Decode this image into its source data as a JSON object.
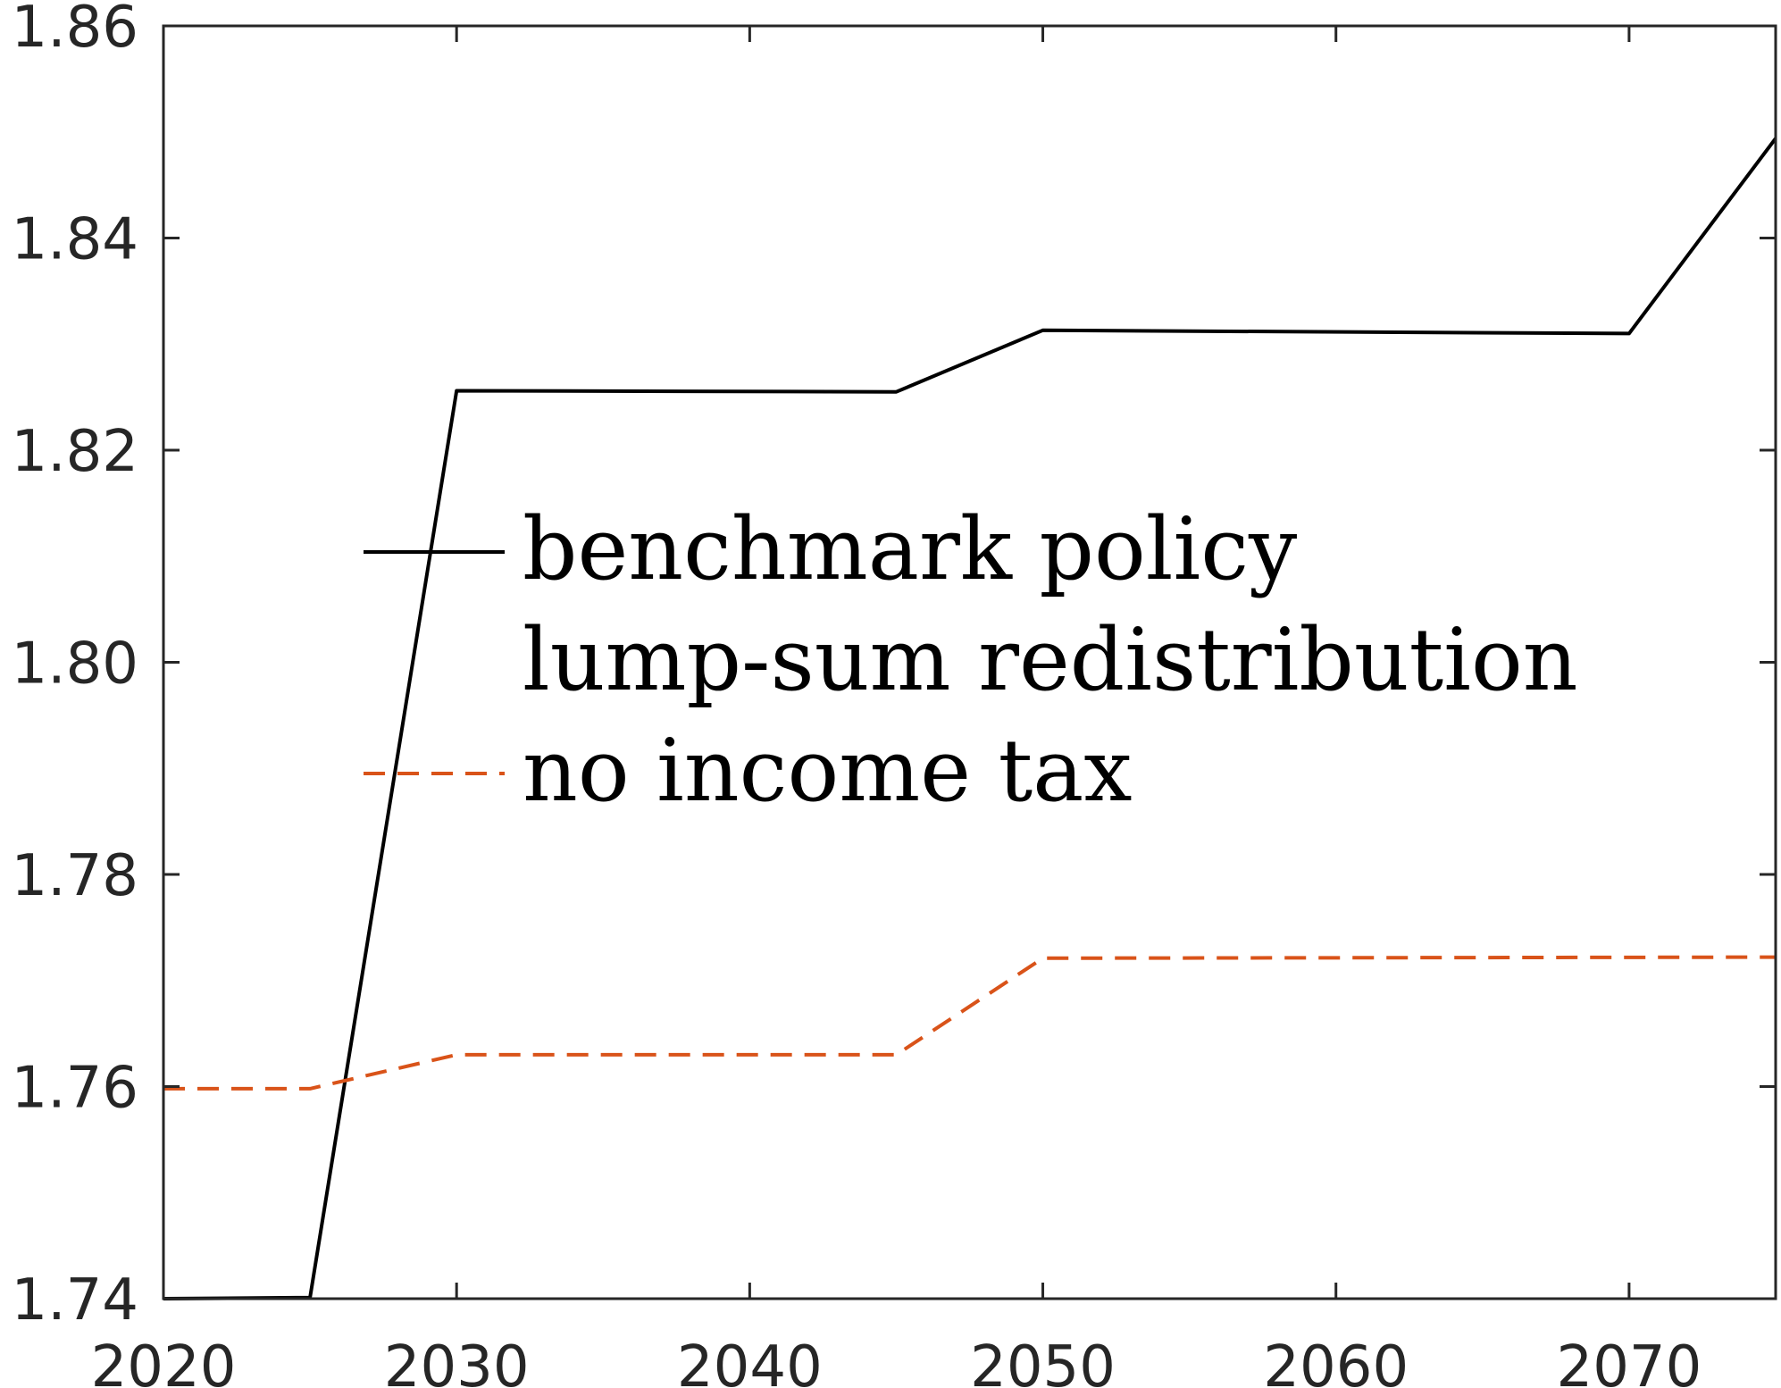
{
  "chart_data": {
    "type": "line",
    "title": "",
    "xlabel": "",
    "ylabel": "",
    "xlim": [
      2020,
      2075
    ],
    "ylim": [
      1.74,
      1.86
    ],
    "xticks": [
      2020,
      2030,
      2040,
      2050,
      2060,
      2070
    ],
    "yticks": [
      1.74,
      1.76,
      1.78,
      1.8,
      1.82,
      1.84,
      1.86
    ],
    "xtick_labels": [
      "2020",
      "2030",
      "2040",
      "2050",
      "2060",
      "2070"
    ],
    "ytick_labels": [
      "1.74",
      "1.76",
      "1.78",
      "1.80",
      "1.82",
      "1.84",
      "1.86"
    ],
    "grid": false,
    "legend_position": "center-left",
    "series": [
      {
        "name": "benchmark policy",
        "color": "#000000",
        "style": "solid",
        "x": [
          2020,
          2025,
          2030,
          2045,
          2050,
          2070,
          2075
        ],
        "y": [
          1.74,
          1.7401,
          1.8256,
          1.8255,
          1.8313,
          1.831,
          1.8494
        ]
      },
      {
        "name": "lump-sum redistribution",
        "color": "#ffffff",
        "style": "none",
        "x": [],
        "y": []
      },
      {
        "name": "no income tax",
        "color": "#d95319",
        "style": "dashed",
        "x": [
          2020,
          2025,
          2030,
          2045,
          2050,
          2075
        ],
        "y": [
          1.7598,
          1.7598,
          1.763,
          1.763,
          1.7721,
          1.7722
        ]
      }
    ]
  }
}
